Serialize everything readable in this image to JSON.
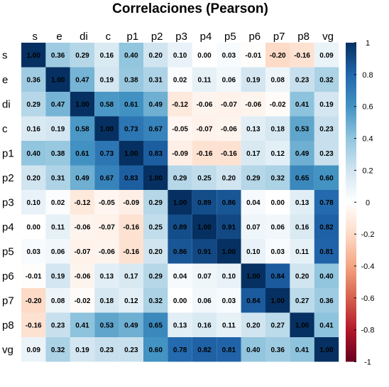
{
  "chart_data": {
    "type": "heatmap",
    "title": "Correlaciones (Pearson)",
    "variables": [
      "s",
      "e",
      "di",
      "c",
      "p1",
      "p2",
      "p3",
      "p4",
      "p5",
      "p6",
      "p7",
      "p8",
      "vg"
    ],
    "matrix": [
      [
        1.0,
        0.36,
        0.29,
        0.16,
        0.4,
        0.2,
        0.1,
        0.0,
        0.03,
        -0.01,
        -0.2,
        -0.16,
        0.09
      ],
      [
        0.36,
        1.0,
        0.47,
        0.19,
        0.38,
        0.31,
        0.02,
        0.11,
        0.06,
        0.19,
        0.08,
        0.23,
        0.32
      ],
      [
        0.29,
        0.47,
        1.0,
        0.58,
        0.61,
        0.49,
        -0.12,
        -0.06,
        -0.07,
        -0.06,
        -0.02,
        0.41,
        0.19
      ],
      [
        0.16,
        0.19,
        0.58,
        1.0,
        0.73,
        0.67,
        -0.05,
        -0.07,
        -0.06,
        0.13,
        0.18,
        0.53,
        0.23
      ],
      [
        0.4,
        0.38,
        0.61,
        0.73,
        1.0,
        0.83,
        -0.09,
        -0.16,
        -0.16,
        0.17,
        0.12,
        0.49,
        0.23
      ],
      [
        0.2,
        0.31,
        0.49,
        0.67,
        0.83,
        1.0,
        0.29,
        0.25,
        0.2,
        0.29,
        0.32,
        0.65,
        0.6
      ],
      [
        0.1,
        0.02,
        -0.12,
        -0.05,
        -0.09,
        0.29,
        1.0,
        0.89,
        0.86,
        0.04,
        0.0,
        0.13,
        0.78
      ],
      [
        0.0,
        0.11,
        -0.06,
        -0.07,
        -0.16,
        0.25,
        0.89,
        1.0,
        0.91,
        0.07,
        0.06,
        0.16,
        0.82
      ],
      [
        0.03,
        0.06,
        -0.07,
        -0.06,
        -0.16,
        0.2,
        0.86,
        0.91,
        1.0,
        0.1,
        0.03,
        0.11,
        0.81
      ],
      [
        -0.01,
        0.19,
        -0.06,
        0.13,
        0.17,
        0.29,
        0.04,
        0.07,
        0.1,
        1.0,
        0.84,
        0.2,
        0.4
      ],
      [
        -0.2,
        0.08,
        -0.02,
        0.18,
        0.12,
        0.32,
        0.0,
        0.06,
        0.03,
        0.84,
        1.0,
        0.27,
        0.36
      ],
      [
        -0.16,
        0.23,
        0.41,
        0.53,
        0.49,
        0.65,
        0.13,
        0.16,
        0.11,
        0.2,
        0.27,
        1.0,
        0.41
      ],
      [
        0.09,
        0.32,
        0.19,
        0.23,
        0.23,
        0.6,
        0.78,
        0.82,
        0.81,
        0.4,
        0.36,
        0.41,
        1.0
      ]
    ],
    "color_scale": {
      "min": -1,
      "max": 1,
      "stops": [
        "#67001F",
        "#B2182B",
        "#D6604D",
        "#F4A582",
        "#FDDBC7",
        "#FFFFFF",
        "#D1E5F0",
        "#92C5DE",
        "#4393C3",
        "#2166AC",
        "#053061"
      ]
    },
    "legend_ticks": [
      1,
      0.8,
      0.6,
      0.4,
      0.2,
      0,
      -0.2,
      -0.4,
      -0.6,
      -0.8,
      -1
    ],
    "legend_tick_labels": [
      "1",
      "0.8",
      "0.6",
      "0.4",
      "0.2",
      "0",
      "-0.2",
      "-0.4",
      "-0.6",
      "-0.8",
      "-1"
    ],
    "legend_placement": "right",
    "value_decimals": 2
  }
}
